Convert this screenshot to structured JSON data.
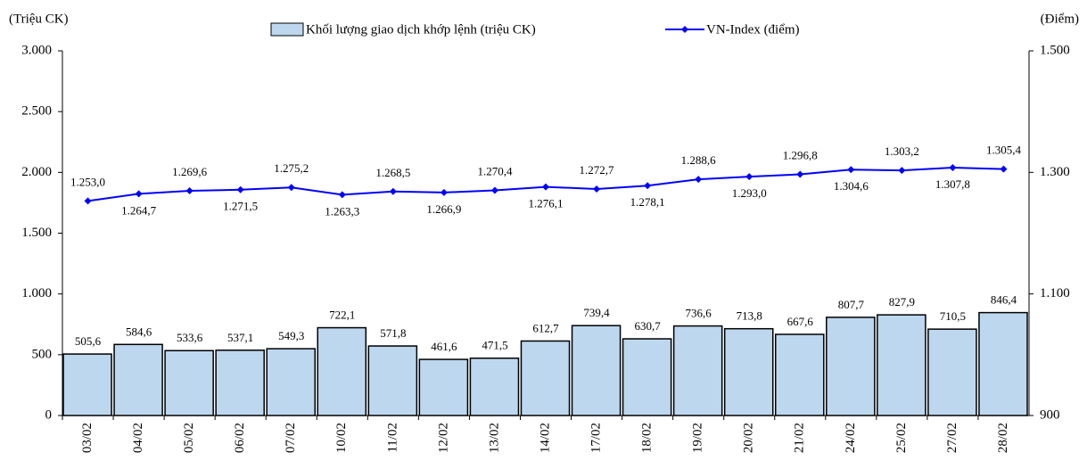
{
  "chart_data": {
    "type": "bar",
    "y_label": "(Triệu CK)",
    "y2_label": "(Điểm)",
    "categories": [
      "03/02",
      "04/02",
      "05/02",
      "06/02",
      "07/02",
      "10/02",
      "11/02",
      "12/02",
      "13/02",
      "14/02",
      "17/02",
      "18/02",
      "19/02",
      "20/02",
      "21/02",
      "24/02",
      "25/02",
      "27/02",
      "28/02"
    ],
    "series": [
      {
        "name": "Khối lượng giao dịch khớp lệnh (triệu CK)",
        "type": "bar",
        "color": "#bdd7ee",
        "values": [
          505.6,
          584.6,
          533.6,
          537.1,
          549.3,
          722.1,
          571.8,
          461.6,
          471.5,
          612.7,
          739.4,
          630.7,
          736.6,
          713.8,
          667.6,
          807.7,
          827.9,
          710.5,
          846.4
        ],
        "value_labels": [
          "505,6",
          "584,6",
          "533,6",
          "537,1",
          "549,3",
          "722,1",
          "571,8",
          "461,6",
          "471,5",
          "612,7",
          "739,4",
          "630,7",
          "736,6",
          "713,8",
          "667,6",
          "807,7",
          "827,9",
          "710,5",
          "846,4"
        ]
      },
      {
        "name": "VN-Index (điểm)",
        "type": "line",
        "axis": "y2",
        "color": "#0000ff",
        "values": [
          1253.0,
          1264.7,
          1269.6,
          1271.5,
          1275.2,
          1263.3,
          1268.5,
          1266.9,
          1270.4,
          1276.1,
          1272.7,
          1278.1,
          1288.6,
          1293.0,
          1296.8,
          1304.6,
          1303.2,
          1307.8,
          1305.4
        ],
        "value_labels": [
          "1.253,0",
          "1.264,7",
          "1.269,6",
          "1.271,5",
          "1.275,2",
          "1.263,3",
          "1.268,5",
          "1.266,9",
          "1.270,4",
          "1.276,1",
          "1.272,7",
          "1.278,1",
          "1.288,6",
          "1.293,0",
          "1.296,8",
          "1.304,6",
          "1.303,2",
          "1.307,8",
          "1.305,4"
        ]
      }
    ],
    "ylim": [
      0,
      3000
    ],
    "yticks": [
      0,
      500,
      {
        "value": 1000,
        "label": "1.000"
      },
      {
        "value": 1500,
        "label": "1.500"
      },
      {
        "value": 2000,
        "label": "2.000"
      },
      {
        "value": 2500,
        "label": "2.500"
      },
      {
        "value": 3000,
        "label": "3.000"
      }
    ],
    "y2lim": [
      900,
      1500
    ],
    "y2ticks": [
      900,
      {
        "value": 1100,
        "label": "1.100"
      },
      {
        "value": 1300,
        "label": "1.300"
      },
      {
        "value": 1500,
        "label": "1.500"
      }
    ],
    "grid": false,
    "legend": "top"
  }
}
